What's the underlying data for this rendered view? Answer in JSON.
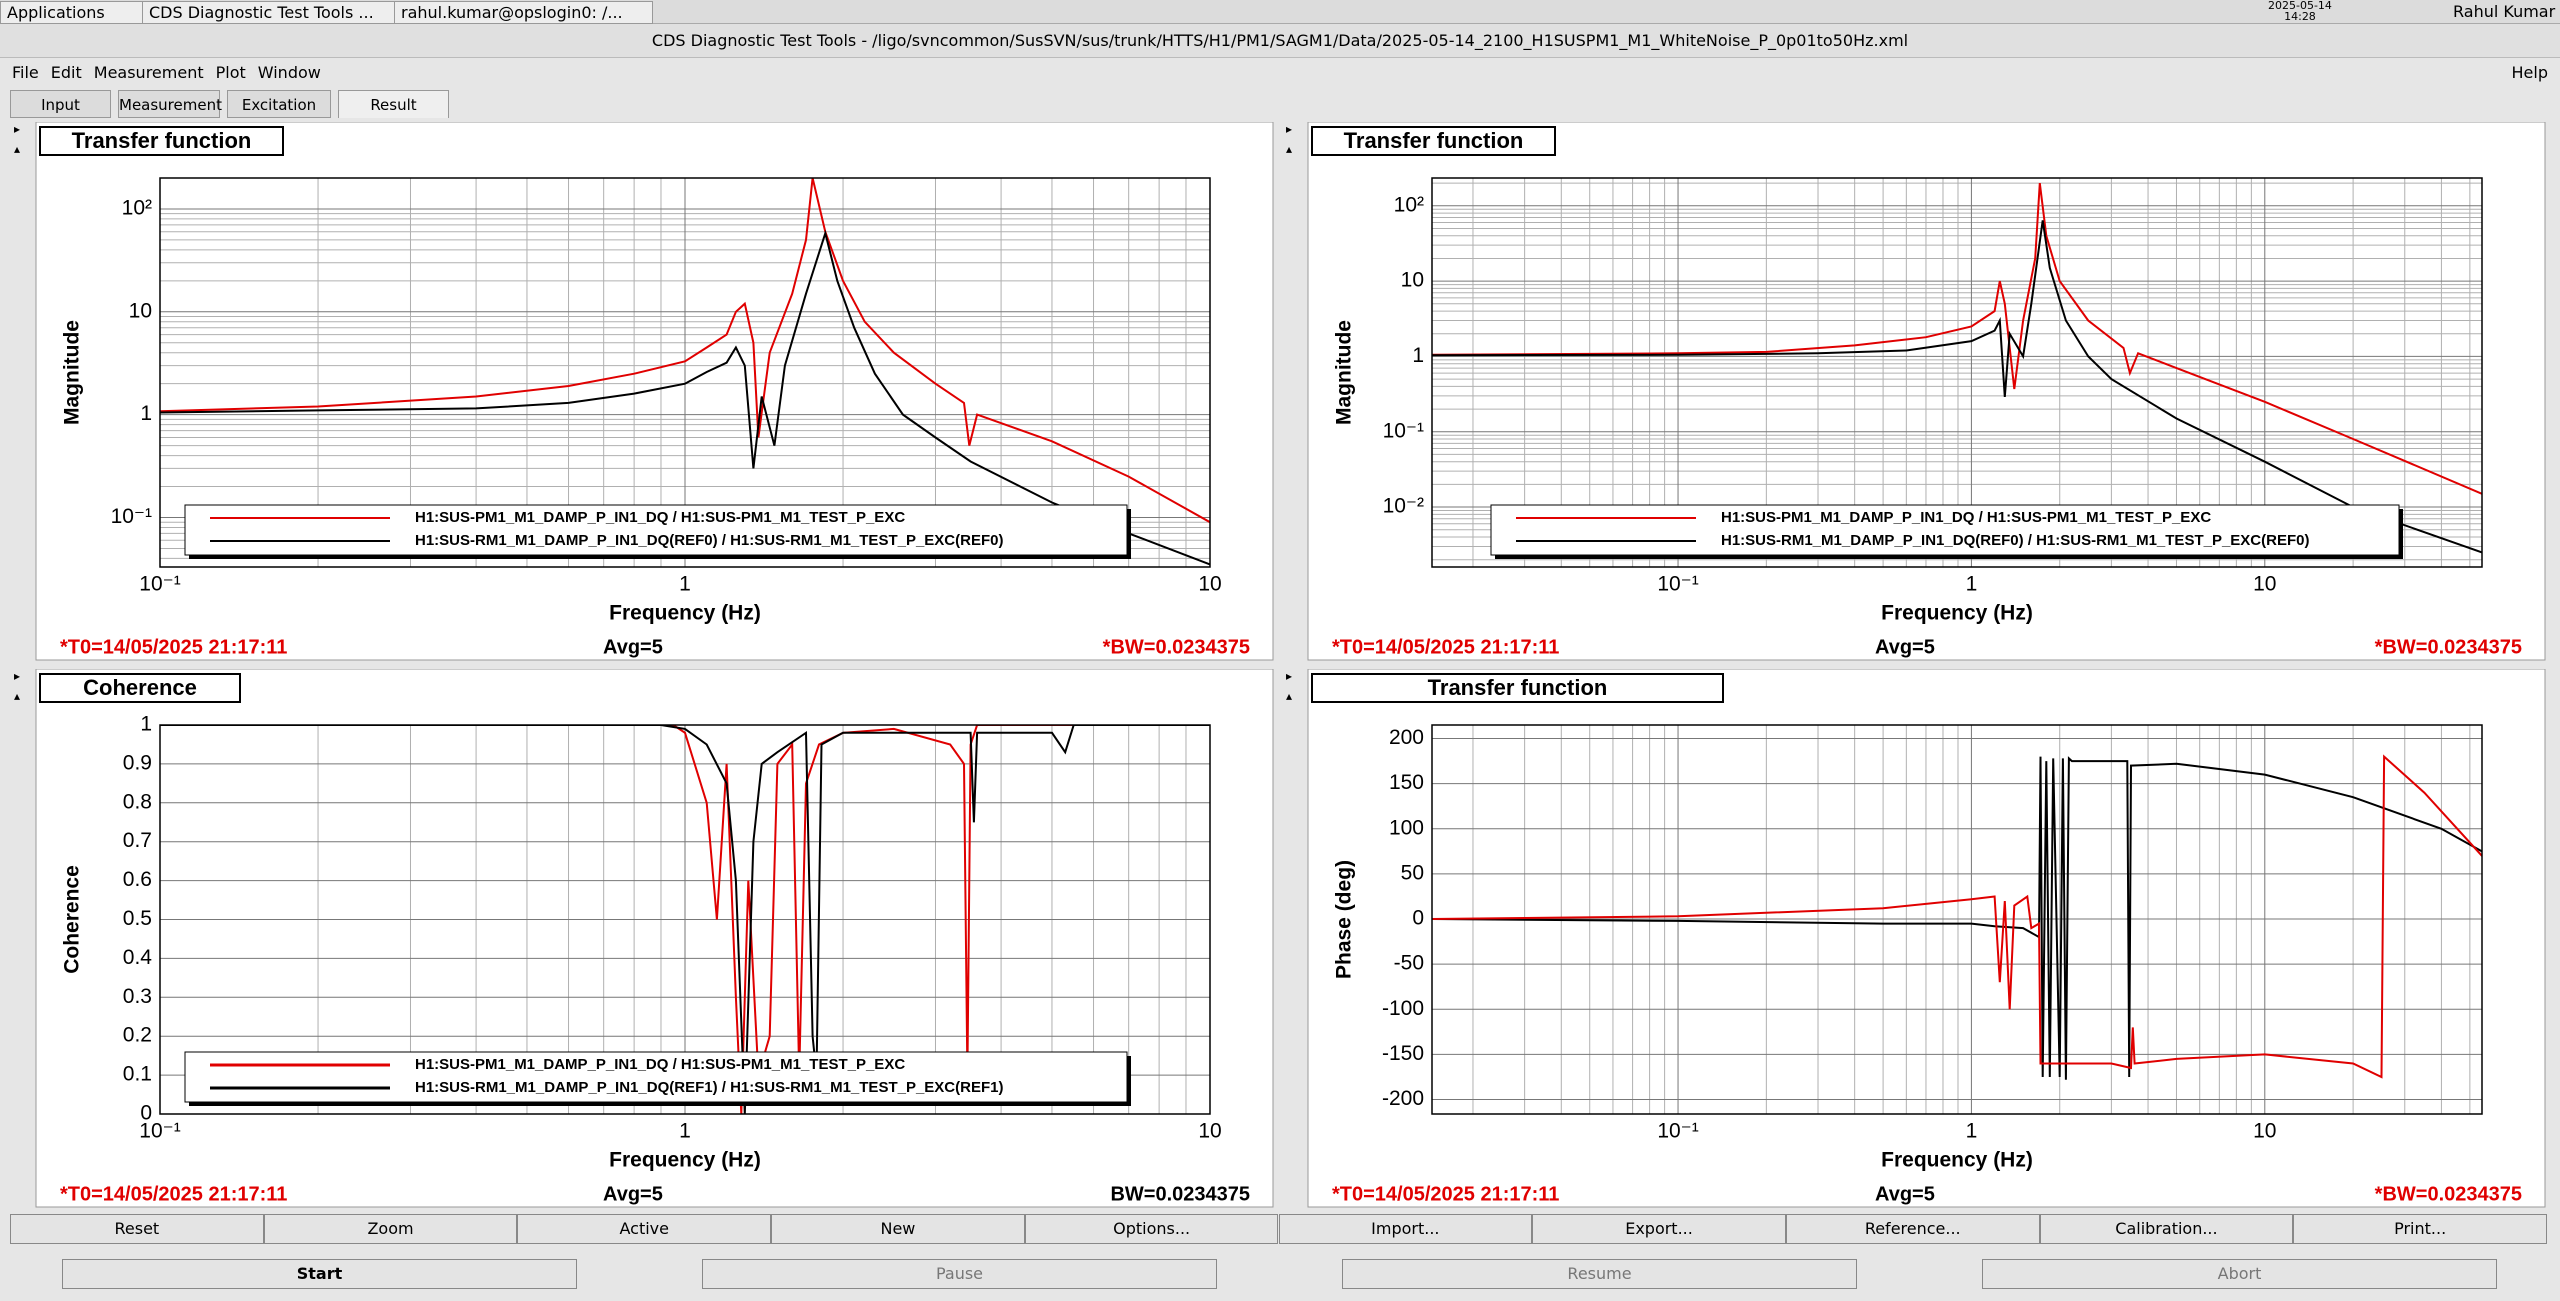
{
  "taskbar": {
    "items": [
      "Applications",
      "CDS Diagnostic Test Tools ...",
      "rahul.kumar@opslogin0: /..."
    ],
    "date": "2025-05-14",
    "time": "14:28",
    "user": "Rahul Kumar"
  },
  "window": {
    "title": "CDS Diagnostic Test Tools - /ligo/svncommon/SusSVN/sus/trunk/HTTS/H1/PM1/SAGM1/Data/2025-05-14_2100_H1SUSPM1_M1_WhiteNoise_P_0p01to50Hz.xml"
  },
  "menu": [
    "File",
    "Edit",
    "Measurement",
    "Plot",
    "Window"
  ],
  "help": "Help",
  "tabs": [
    "Input",
    "Measurement",
    "Excitation",
    "Result"
  ],
  "active_tab": "Result",
  "panels": [
    {
      "title": "Transfer function",
      "type": "line",
      "xlabel": "Frequency (Hz)",
      "ylabel": "Magnitude",
      "xscale": "log",
      "yscale": "log",
      "grid": true,
      "legend": true,
      "xlim": [
        0.1,
        10
      ],
      "ylim": [
        0.033,
        200
      ],
      "xticks": [
        {
          "value": 0.1,
          "label": "10⁻¹"
        },
        1,
        10
      ],
      "yticks": [
        {
          "value": 0.1,
          "label": "10⁻¹"
        },
        1,
        10,
        {
          "value": 100,
          "label": "10²"
        }
      ],
      "series": [
        {
          "name": "H1:SUS-PM1_M1_DAMP_P_IN1_DQ / H1:SUS-PM1_M1_TEST_P_EXC",
          "color": "#e00000",
          "x": [
            0.1,
            0.2,
            0.4,
            0.6,
            0.8,
            1.0,
            1.1,
            1.2,
            1.25,
            1.3,
            1.35,
            1.38,
            1.45,
            1.6,
            1.7,
            1.75,
            1.85,
            2.0,
            2.2,
            2.5,
            3.0,
            3.4,
            3.48,
            3.6,
            5,
            7,
            10
          ],
          "values": [
            1.08,
            1.2,
            1.5,
            1.9,
            2.5,
            3.3,
            4.5,
            6,
            10,
            12,
            5,
            0.6,
            4,
            15,
            50,
            200,
            60,
            20,
            8,
            4,
            2,
            1.3,
            0.5,
            1.0,
            0.55,
            0.25,
            0.09
          ]
        },
        {
          "name": "H1:SUS-RM1_M1_DAMP_P_IN1_DQ(REF0) / H1:SUS-RM1_M1_TEST_P_EXC(REF0)",
          "color": "#000000",
          "x": [
            0.1,
            0.2,
            0.4,
            0.6,
            0.8,
            1.0,
            1.1,
            1.2,
            1.25,
            1.3,
            1.35,
            1.4,
            1.48,
            1.55,
            1.7,
            1.85,
            1.95,
            2.1,
            2.3,
            2.6,
            3.0,
            3.5,
            5,
            7,
            10
          ],
          "values": [
            1.05,
            1.1,
            1.15,
            1.3,
            1.6,
            2,
            2.6,
            3.2,
            4.5,
            3,
            0.3,
            1.5,
            0.5,
            3,
            15,
            58,
            20,
            7,
            2.5,
            1.0,
            0.6,
            0.35,
            0.14,
            0.07,
            0.035
          ]
        }
      ],
      "footer": {
        "t0": "*T0=14/05/2025 21:17:11",
        "avg": "Avg=5",
        "bw": "*BW=0.0234375",
        "bw_color": "#e00000"
      }
    },
    {
      "title": "Transfer function",
      "type": "line",
      "xlabel": "Frequency (Hz)",
      "ylabel": "Magnitude",
      "xscale": "log",
      "yscale": "log",
      "grid": true,
      "legend": true,
      "xlim": [
        0.0145,
        55
      ],
      "ylim": [
        0.0016,
        234
      ],
      "xticks": [
        {
          "value": 0.1,
          "label": "10⁻¹"
        },
        1,
        10
      ],
      "yticks": [
        {
          "value": 0.01,
          "label": "10⁻²"
        },
        {
          "value": 0.1,
          "label": "10⁻¹"
        },
        1,
        10,
        {
          "value": 100,
          "label": "10²"
        }
      ],
      "series": [
        {
          "name": "H1:SUS-PM1_M1_DAMP_P_IN1_DQ / H1:SUS-PM1_M1_TEST_P_EXC",
          "color": "#e00000",
          "x": [
            0.0145,
            0.05,
            0.1,
            0.2,
            0.4,
            0.7,
            1.0,
            1.2,
            1.25,
            1.3,
            1.4,
            1.5,
            1.65,
            1.71,
            1.8,
            2.0,
            2.5,
            3.3,
            3.47,
            3.7,
            5,
            10,
            20,
            55
          ],
          "values": [
            1.05,
            1.08,
            1.1,
            1.15,
            1.4,
            1.8,
            2.5,
            4,
            10,
            5,
            0.37,
            3,
            20,
            200,
            40,
            10,
            3,
            1.3,
            0.6,
            1.1,
            0.7,
            0.25,
            0.08,
            0.015
          ]
        },
        {
          "name": "H1:SUS-RM1_M1_DAMP_P_IN1_DQ(REF0) / H1:SUS-RM1_M1_TEST_P_EXC(REF0)",
          "color": "#000000",
          "x": [
            0.0145,
            0.1,
            0.3,
            0.6,
            1.0,
            1.2,
            1.25,
            1.3,
            1.35,
            1.5,
            1.6,
            1.75,
            1.85,
            2.1,
            2.5,
            3.0,
            5,
            10,
            20,
            55
          ],
          "values": [
            1.04,
            1.05,
            1.1,
            1.2,
            1.6,
            2.2,
            3,
            0.29,
            2,
            1.0,
            5,
            64,
            15,
            3,
            1.0,
            0.5,
            0.15,
            0.04,
            0.01,
            0.0025
          ]
        }
      ],
      "footer": {
        "t0": "*T0=14/05/2025 21:17:11",
        "avg": "Avg=5",
        "bw": "*BW=0.0234375",
        "bw_color": "#e00000"
      }
    },
    {
      "title": "Coherence",
      "type": "line",
      "xlabel": "Frequency (Hz)",
      "ylabel": "Coherence",
      "xscale": "log",
      "yscale": "linear",
      "grid": true,
      "legend": true,
      "xlim": [
        0.1,
        10
      ],
      "ylim": [
        0,
        1
      ],
      "xticks": [
        {
          "value": 0.1,
          "label": "10⁻¹"
        },
        1,
        10
      ],
      "yticks": [
        0,
        0.1,
        0.2,
        0.3,
        0.4,
        0.5,
        0.6,
        0.7,
        0.8,
        0.9,
        1
      ],
      "series": [
        {
          "name": "H1:SUS-PM1_M1_DAMP_P_IN1_DQ / H1:SUS-PM1_M1_TEST_P_EXC",
          "color": "#e00000",
          "x": [
            0.1,
            0.95,
            1.0,
            1.1,
            1.15,
            1.2,
            1.25,
            1.28,
            1.32,
            1.38,
            1.45,
            1.5,
            1.6,
            1.65,
            1.7,
            1.8,
            2.0,
            2.5,
            3.2,
            3.4,
            3.45,
            3.5,
            3.6,
            10
          ],
          "values": [
            1,
            1,
            0.98,
            0.8,
            0.5,
            0.9,
            0.3,
            0,
            0.6,
            0.1,
            0.2,
            0.9,
            0.95,
            0.1,
            0.85,
            0.95,
            0.98,
            0.99,
            0.95,
            0.9,
            0.1,
            0.95,
            1,
            1
          ]
        },
        {
          "name": "H1:SUS-RM1_M1_DAMP_P_IN1_DQ(REF1) / H1:SUS-RM1_M1_TEST_P_EXC(REF1)",
          "color": "#000000",
          "x": [
            0.1,
            0.9,
            1.0,
            1.1,
            1.2,
            1.25,
            1.3,
            1.35,
            1.4,
            1.5,
            1.7,
            1.75,
            1.78,
            1.82,
            2.0,
            3.5,
            3.55,
            3.6,
            5.0,
            5.3,
            5.5,
            10
          ],
          "values": [
            1,
            1,
            0.99,
            0.95,
            0.85,
            0.6,
            0,
            0.7,
            0.9,
            0.93,
            0.98,
            0.2,
            0.1,
            0.95,
            0.98,
            0.98,
            0.75,
            0.98,
            0.98,
            0.93,
            1,
            1
          ]
        }
      ],
      "footer": {
        "t0": "*T0=14/05/2025 21:17:11",
        "avg": "Avg=5",
        "bw": "BW=0.0234375",
        "bw_color": "#000000"
      }
    },
    {
      "title": "Transfer function",
      "type": "line",
      "xlabel": "Frequency (Hz)",
      "ylabel": "Phase (deg)",
      "xscale": "log",
      "yscale": "linear",
      "grid": true,
      "legend": false,
      "xlim": [
        0.0145,
        55
      ],
      "ylim": [
        -216,
        215
      ],
      "xticks": [
        {
          "value": 0.1,
          "label": "10⁻¹"
        },
        1,
        10
      ],
      "yticks": [
        -200,
        -150,
        -100,
        -50,
        0,
        50,
        100,
        150,
        200
      ],
      "series": [
        {
          "color": "#000000",
          "x": [
            0.0145,
            0.1,
            0.5,
            1.0,
            1.2,
            1.5,
            1.7,
            1.72,
            1.75,
            1.8,
            1.85,
            1.9,
            2.0,
            2.05,
            2.1,
            2.15,
            2.2,
            3.4,
            3.45,
            3.5,
            5,
            10,
            20,
            40,
            55
          ],
          "values": [
            0,
            -2,
            -5,
            -5,
            -8,
            -10,
            -20,
            180,
            -175,
            175,
            -175,
            178,
            -175,
            178,
            -178,
            178,
            175,
            175,
            -175,
            170,
            172,
            160,
            135,
            100,
            75
          ]
        },
        {
          "color": "#e00000",
          "x": [
            0.0145,
            0.1,
            0.5,
            1.0,
            1.2,
            1.25,
            1.3,
            1.35,
            1.4,
            1.55,
            1.6,
            1.7,
            1.72,
            2,
            3,
            3.5,
            3.55,
            3.6,
            5,
            10,
            20,
            25,
            25.5,
            35,
            55
          ],
          "values": [
            0,
            3,
            12,
            22,
            25,
            -70,
            20,
            -100,
            15,
            25,
            -10,
            -5,
            -160,
            -160,
            -160,
            -165,
            -120,
            -160,
            -155,
            -150,
            -160,
            -175,
            180,
            140,
            70
          ]
        }
      ],
      "footer": {
        "t0": "*T0=14/05/2025 21:17:11",
        "avg": "Avg=5",
        "bw": "*BW=0.0234375",
        "bw_color": "#e00000"
      }
    }
  ],
  "buttons": [
    "Reset",
    "Zoom",
    "Active",
    "New",
    "Options...",
    "Import...",
    "Export...",
    "Reference...",
    "Calibration...",
    "Print..."
  ],
  "controls": [
    "Start",
    "Pause",
    "Resume",
    "Abort"
  ]
}
